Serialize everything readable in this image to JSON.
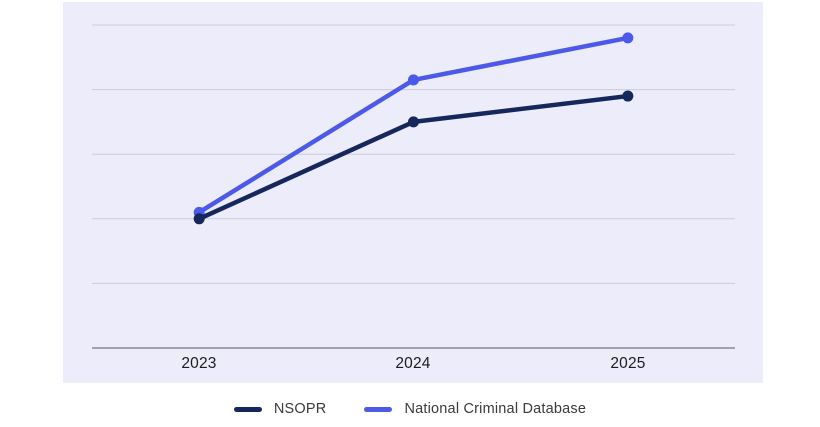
{
  "chart_data": {
    "type": "line",
    "categories": [
      "2023",
      "2024",
      "2025"
    ],
    "series": [
      {
        "name": "NSOPR",
        "color": "#16275C",
        "values": [
          40,
          70,
          78
        ]
      },
      {
        "name": "National Criminal Database",
        "color": "#4D59E8",
        "values": [
          42,
          83,
          96
        ]
      }
    ],
    "title": "",
    "xlabel": "",
    "ylabel": "",
    "y_axis": {
      "tick_labels_visible": false,
      "gridlines": [
        20,
        40,
        60,
        80,
        100
      ],
      "ylim": [
        0,
        107
      ]
    },
    "legend_position": "bottom",
    "grid": "horizontal-only",
    "colors": {
      "plot_background": "#ECECFA",
      "gridline": "#CBCCD9",
      "axis_line": "#8A8A94",
      "tick_label": "#1B1B20",
      "legend_text": "#3A3A3C"
    }
  }
}
